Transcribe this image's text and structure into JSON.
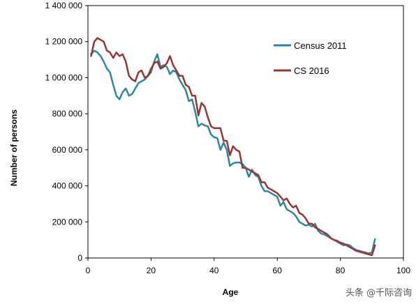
{
  "chart_data": {
    "type": "line",
    "xlabel": "Age",
    "ylabel": "Number of persons",
    "xlim": [
      0,
      100
    ],
    "ylim": [
      0,
      1400000
    ],
    "xticks": [
      "0",
      "20",
      "40",
      "60",
      "80",
      "100"
    ],
    "yticks": [
      "0",
      "200 000",
      "400 000",
      "600 000",
      "800 000",
      "1 000 000",
      "1 200 000",
      "1 400 000"
    ],
    "grid": false,
    "legend_position": "top-right",
    "series": [
      {
        "name": "Census 2011",
        "color": "#31859C",
        "x": [
          1,
          2,
          3,
          4,
          5,
          6,
          7,
          8,
          9,
          10,
          11,
          12,
          13,
          14,
          15,
          16,
          17,
          18,
          19,
          20,
          21,
          22,
          23,
          24,
          25,
          26,
          27,
          28,
          29,
          30,
          31,
          32,
          33,
          34,
          35,
          36,
          37,
          38,
          39,
          40,
          41,
          42,
          43,
          44,
          45,
          46,
          47,
          48,
          49,
          50,
          51,
          52,
          53,
          54,
          55,
          56,
          57,
          58,
          59,
          60,
          61,
          62,
          63,
          64,
          65,
          66,
          67,
          68,
          69,
          70,
          71,
          72,
          73,
          74,
          75,
          76,
          77,
          78,
          79,
          80,
          81,
          82,
          83,
          84,
          85,
          86,
          87,
          88,
          89,
          90,
          91
        ],
        "values": [
          1130000,
          1150000,
          1140000,
          1120000,
          1090000,
          1050000,
          1030000,
          960000,
          900000,
          880000,
          920000,
          940000,
          900000,
          910000,
          940000,
          970000,
          980000,
          990000,
          1010000,
          1030000,
          1090000,
          1130000,
          1060000,
          1070000,
          1060000,
          1020000,
          1040000,
          1030000,
          990000,
          960000,
          930000,
          870000,
          880000,
          810000,
          730000,
          745000,
          735000,
          730000,
          685000,
          670000,
          665000,
          600000,
          640000,
          600000,
          510000,
          525000,
          530000,
          530000,
          520000,
          500000,
          450000,
          490000,
          460000,
          450000,
          400000,
          370000,
          370000,
          360000,
          350000,
          340000,
          290000,
          310000,
          270000,
          260000,
          250000,
          230000,
          200000,
          190000,
          180000,
          185000,
          175000,
          190000,
          150000,
          135000,
          130000,
          120000,
          110000,
          100000,
          90000,
          80000,
          70000,
          75000,
          70000,
          55000,
          45000,
          40000,
          35000,
          30000,
          25000,
          30000,
          105000
        ]
      },
      {
        "name": "CS 2016",
        "color": "#943634",
        "x": [
          1,
          2,
          3,
          4,
          5,
          6,
          7,
          8,
          9,
          10,
          11,
          12,
          13,
          14,
          15,
          16,
          17,
          18,
          19,
          20,
          21,
          22,
          23,
          24,
          25,
          26,
          27,
          28,
          29,
          30,
          31,
          32,
          33,
          34,
          35,
          36,
          37,
          38,
          39,
          40,
          41,
          42,
          43,
          44,
          45,
          46,
          47,
          48,
          49,
          50,
          51,
          52,
          53,
          54,
          55,
          56,
          57,
          58,
          59,
          60,
          61,
          62,
          63,
          64,
          65,
          66,
          67,
          68,
          69,
          70,
          71,
          72,
          73,
          74,
          75,
          76,
          77,
          78,
          79,
          80,
          81,
          82,
          83,
          84,
          85,
          86,
          87,
          88,
          89,
          90,
          91
        ],
        "values": [
          1120000,
          1200000,
          1220000,
          1210000,
          1200000,
          1150000,
          1140000,
          1110000,
          1140000,
          1120000,
          1130000,
          1090000,
          1010000,
          990000,
          980000,
          1030000,
          1040000,
          1000000,
          1010000,
          1050000,
          1080000,
          1090000,
          1050000,
          1060000,
          1080000,
          1120000,
          1070000,
          1040000,
          1010000,
          1010000,
          960000,
          950000,
          900000,
          900000,
          790000,
          860000,
          840000,
          780000,
          730000,
          720000,
          720000,
          720000,
          650000,
          650000,
          570000,
          620000,
          600000,
          590000,
          500000,
          500000,
          490000,
          480000,
          470000,
          460000,
          420000,
          420000,
          390000,
          380000,
          370000,
          360000,
          340000,
          320000,
          330000,
          300000,
          280000,
          290000,
          250000,
          240000,
          220000,
          190000,
          190000,
          170000,
          160000,
          150000,
          140000,
          130000,
          110000,
          100000,
          95000,
          85000,
          80000,
          70000,
          60000,
          50000,
          40000,
          35000,
          30000,
          25000,
          20000,
          15000,
          70000
        ]
      }
    ]
  },
  "watermark": "头条 @千际咨询"
}
